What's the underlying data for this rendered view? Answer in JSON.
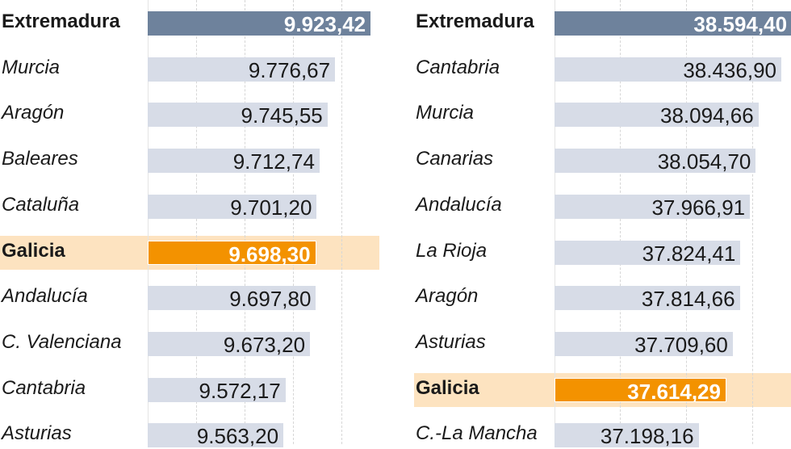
{
  "chart_data": [
    {
      "type": "bar",
      "orientation": "horizontal",
      "highlight": "Galicia",
      "leader": "Extremadura",
      "categories": [
        "Extremadura",
        "Murcia",
        "Aragón",
        "Baleares",
        "Cataluña",
        "Galicia",
        "Andalucía",
        "C. Valenciana",
        "Cantabria",
        "Asturias"
      ],
      "values": [
        9923.42,
        9776.67,
        9745.55,
        9712.74,
        9701.2,
        9698.3,
        9697.8,
        9673.2,
        9572.17,
        9563.2
      ],
      "labels": [
        "9.923,42",
        "9.776,67",
        "9.745,55",
        "9.712,74",
        "9.701,20",
        "9.698,30",
        "9.697,80",
        "9.673,20",
        "9.572,17",
        "9.563,20"
      ]
    },
    {
      "type": "bar",
      "orientation": "horizontal",
      "highlight": "Galicia",
      "leader": "Extremadura",
      "categories": [
        "Extremadura",
        "Cantabria",
        "Murcia",
        "Canarias",
        "Andalucía",
        "La Rioja",
        "Aragón",
        "Asturias",
        "Galicia",
        "C.-La Mancha"
      ],
      "values": [
        38594.4,
        38436.9,
        38094.66,
        38054.7,
        37966.91,
        37824.41,
        37814.66,
        37709.6,
        37614.29,
        37198.16
      ],
      "labels": [
        "38.594,40",
        "38.436,90",
        "38.094,66",
        "38.054,70",
        "37.966,91",
        "37.824,41",
        "37.814,66",
        "37.709,60",
        "37.614,29",
        "37.198,16"
      ]
    }
  ],
  "colors": {
    "leader": "#6e829c",
    "highlight": "#f39200",
    "highlight_band": "#fde3c0",
    "bar": "#d7dce7"
  }
}
